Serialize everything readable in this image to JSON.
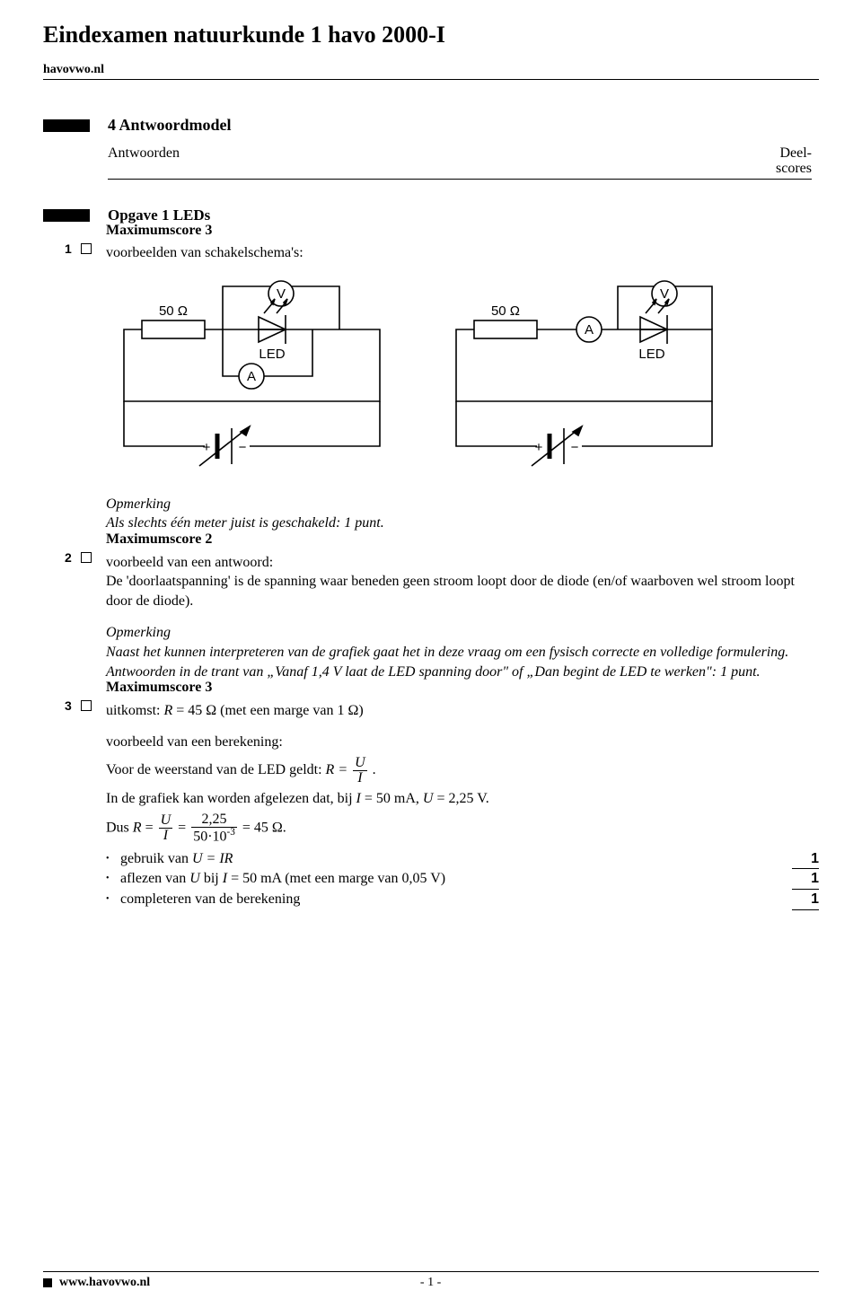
{
  "header": {
    "exam_title": "Eindexamen natuurkunde 1 havo 2000-I",
    "site": "havovwo.nl"
  },
  "section": {
    "title": "4 Antwoordmodel",
    "antwoorden_label": "Antwoorden",
    "deelscores_line1": "Deel-",
    "deelscores_line2": "scores",
    "opgave_title": "Opgave 1 LEDs"
  },
  "q1": {
    "num": "1",
    "max": "Maximumscore 3",
    "line": "voorbeelden van schakelschema's:",
    "opm_title": "Opmerking",
    "opm_text": "Als slechts één meter juist is geschakeld: 1 punt.",
    "circuit": {
      "resistor_label": "50 Ω",
      "led_label": "LED",
      "volt_label": "V",
      "amp_label": "A",
      "plus": "+",
      "minus": "−",
      "stroke_color": "#000000",
      "stroke_width": 1.6,
      "font_family": "Arial, Helvetica, sans-serif"
    }
  },
  "q2": {
    "num": "2",
    "max": "Maximumscore 2",
    "l1": "voorbeeld van een antwoord:",
    "l2": "De 'doorlaatspanning' is de spanning waar beneden geen stroom loopt door de diode (en/of waarboven wel stroom loopt door de diode).",
    "opm_title": "Opmerking",
    "opm_text": "Naast het kunnen interpreteren van de grafiek gaat het in deze vraag om een fysisch correcte en volledige formulering. Antwoorden in de trant van „Vanaf 1,4 V laat de LED spanning door\" of „Dan begint de LED te werken\": 1 punt."
  },
  "q3": {
    "num": "3",
    "max": "Maximumscore 3",
    "l1": "uitkomst: R = 45 Ω (met een marge van 1 Ω)",
    "l2": "voorbeeld van een berekening:",
    "l3_pre": "Voor de weerstand van de LED geldt: ",
    "l3_post": " .",
    "frac1_num": "U",
    "frac1_den": "I",
    "l4": "In de grafiek kan worden afgelezen dat, bij I = 50 mA, U = 2,25 V.",
    "l5_pre": "Dus R = ",
    "l5_mid": " = ",
    "frac2_num": "2,25",
    "frac2_den": "50·10",
    "frac2_den_sup": "-3",
    "l5_post": " = 45 Ω.",
    "R_eq": "R = ",
    "bullets": [
      {
        "text": "gebruik van U = IR",
        "score": "1"
      },
      {
        "text": "aflezen van U bij I = 50 mA (met een marge van 0,05 V)",
        "score": "1"
      },
      {
        "text": "completeren van de berekening",
        "score": "1"
      }
    ]
  },
  "footer": {
    "site": "www.havovwo.nl",
    "page": "- 1 -"
  }
}
